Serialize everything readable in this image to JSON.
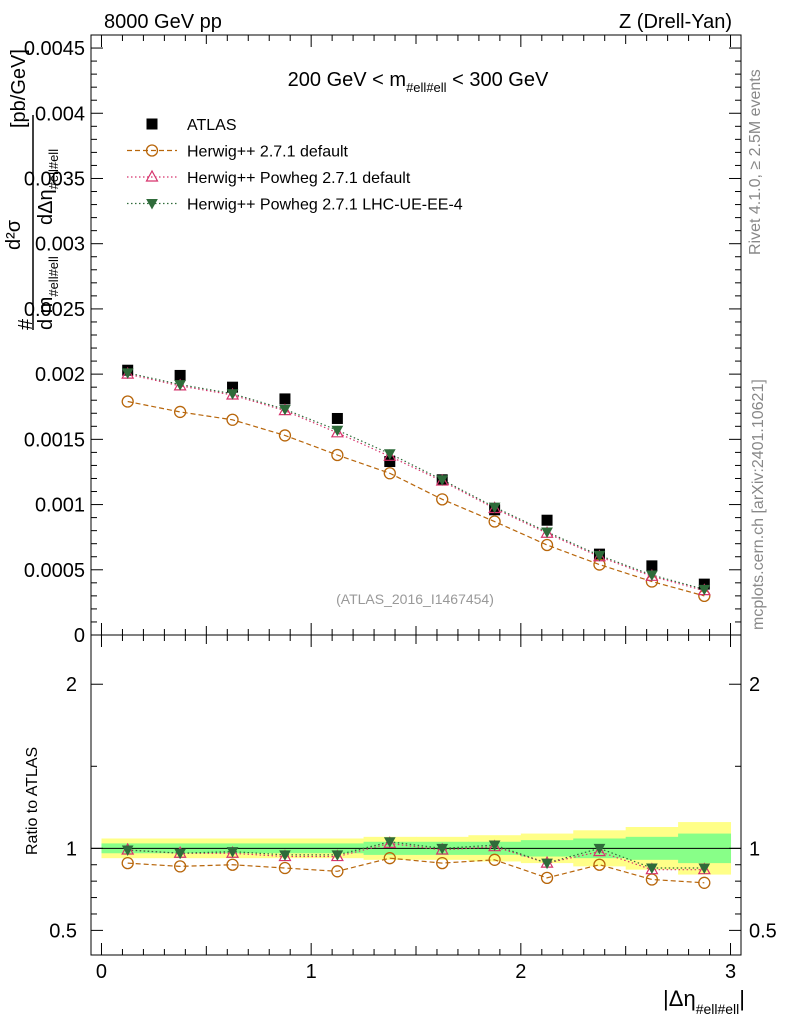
{
  "header": {
    "left": "8000 GeV pp",
    "right": "Z (Drell-Yan)"
  },
  "side_labels": {
    "rivet": "Rivet 4.1.0, ≥ 2.5M events",
    "mcplots": "mcplots.cern.ch [arXiv:2401.10621]"
  },
  "chart_data": {
    "type": "line",
    "title": "200 GeV < m#ell#ell < 300 GeV",
    "title_parts": {
      "a": "200 GeV < m",
      "sub": "#ell#ell",
      "b": " < 300 GeV"
    },
    "watermark": "(ATLAS_2016_I1467454)",
    "xlabel": "|Δη#ell#ell|",
    "xlabel_parts": {
      "main": "|Δη",
      "sub": "#ell#ell",
      "end": "|"
    },
    "ylabel": "d²σ / d m#ell#ell dΔη#ell#ell [pb/GeV]",
    "ylabel_parts": {
      "d2s": "d²σ",
      "dm": "d m",
      "dm_sub": "#ell#ell",
      "deta": "dΔη",
      "deta_sub": "#ell#ell",
      "hash": "#",
      "unit": "[pb/GeV]"
    },
    "ratio_ylabel": "Ratio to ATLAS",
    "xlim": [
      -0.05,
      3.05
    ],
    "ylim": [
      0,
      0.0046
    ],
    "ratio_ylim": [
      0.35,
      2.3
    ],
    "x_ticks": [
      0,
      1,
      2,
      3
    ],
    "x_tick_labels": [
      "0",
      "1",
      "2",
      "3"
    ],
    "y_ticks": [
      0,
      0.0005,
      0.001,
      0.0015,
      0.002,
      0.0025,
      0.003,
      0.0035,
      0.004,
      0.0045
    ],
    "y_tick_labels": [
      "0",
      "0.0005",
      "0.001",
      "0.0015",
      "0.002",
      "0.0025",
      "0.003",
      "0.0035",
      "0.004",
      "0.0045"
    ],
    "ratio_ticks": [
      0.5,
      1,
      2
    ],
    "ratio_tick_labels": [
      "0.5",
      "1",
      "2"
    ],
    "x": [
      0.125,
      0.375,
      0.625,
      0.875,
      1.125,
      1.375,
      1.625,
      1.875,
      2.125,
      2.375,
      2.625,
      2.875
    ],
    "bin_edges": [
      0,
      0.25,
      0.5,
      0.75,
      1.0,
      1.25,
      1.5,
      1.75,
      2.0,
      2.25,
      2.5,
      2.75,
      3.0
    ],
    "series": [
      {
        "name": "ATLAS",
        "marker": "square",
        "color": "#000000",
        "values": [
          0.00203,
          0.00199,
          0.0019,
          0.00181,
          0.00166,
          0.00133,
          0.00119,
          0.00096,
          0.00088,
          0.00062,
          0.00053,
          0.00039
        ],
        "ratio": [
          1,
          1,
          1,
          1,
          1,
          1,
          1,
          1,
          1,
          1,
          1,
          1
        ]
      },
      {
        "name": "Herwig++ 2.7.1 default",
        "marker": "open-circle",
        "line": "dashed",
        "color": "#b8660b",
        "values": [
          0.00179,
          0.00171,
          0.00165,
          0.00153,
          0.00138,
          0.00124,
          0.00104,
          0.00087,
          0.00069,
          0.00054,
          0.00041,
          0.0003
        ],
        "ratio": [
          0.91,
          0.89,
          0.9,
          0.88,
          0.86,
          0.94,
          0.91,
          0.93,
          0.82,
          0.9,
          0.81,
          0.79
        ]
      },
      {
        "name": "Herwig++ Powheg 2.7.1 default",
        "marker": "open-triangle",
        "line": "dotted",
        "color": "#d6336c",
        "values": [
          0.002,
          0.00191,
          0.00184,
          0.00172,
          0.00155,
          0.00137,
          0.00118,
          0.00097,
          0.00078,
          0.0006,
          0.00045,
          0.00034
        ],
        "ratio": [
          0.99,
          0.97,
          0.97,
          0.95,
          0.95,
          1.03,
          0.99,
          1.01,
          0.91,
          0.98,
          0.87,
          0.87
        ]
      },
      {
        "name": "Herwig++ Powheg 2.7.1 LHC-UE-EE-4",
        "marker": "filled-triangle-down",
        "line": "dotted",
        "color": "#2f6b3a",
        "values": [
          0.00201,
          0.00192,
          0.00185,
          0.00173,
          0.00157,
          0.00139,
          0.00119,
          0.00098,
          0.00079,
          0.00061,
          0.00046,
          0.00035
        ],
        "ratio": [
          0.99,
          0.97,
          0.98,
          0.96,
          0.96,
          1.04,
          1.0,
          1.02,
          0.91,
          1.0,
          0.88,
          0.88
        ]
      }
    ],
    "bands": {
      "yellow": {
        "color": "#ffff88",
        "lo": [
          0.94,
          0.94,
          0.94,
          0.94,
          0.94,
          0.93,
          0.93,
          0.92,
          0.91,
          0.89,
          0.87,
          0.84
        ],
        "hi": [
          1.06,
          1.06,
          1.06,
          1.06,
          1.06,
          1.07,
          1.07,
          1.08,
          1.09,
          1.11,
          1.13,
          1.16
        ]
      },
      "green": {
        "color": "#88ff88",
        "lo": [
          0.97,
          0.97,
          0.97,
          0.97,
          0.97,
          0.96,
          0.96,
          0.96,
          0.95,
          0.94,
          0.93,
          0.91
        ],
        "hi": [
          1.03,
          1.03,
          1.03,
          1.03,
          1.03,
          1.04,
          1.04,
          1.04,
          1.05,
          1.06,
          1.07,
          1.09
        ]
      }
    }
  }
}
